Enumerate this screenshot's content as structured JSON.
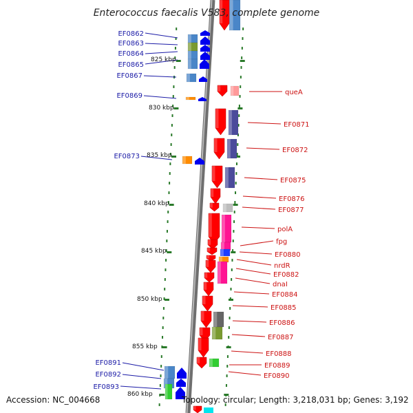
{
  "title": "Enterococcus faecalis V583, complete genome",
  "footer": {
    "accession": "Accession: NC_004668",
    "topology": "Topology: circular; Length: 3,218,031 bp; Genes: 3,192"
  },
  "colors": {
    "backbone": "#888888",
    "tick": "#2a7a2a",
    "left_label": "#1a1aa6",
    "right_label": "#cc1111",
    "forward_gene": "#ff0000",
    "reverse_gene": "#0000ee"
  },
  "ticks": [
    {
      "label": "825 kbp"
    },
    {
      "label": "830 kbp"
    },
    {
      "label": "835 kbp"
    },
    {
      "label": "840 kbp"
    },
    {
      "label": "845 kbp"
    },
    {
      "label": "850 kbp"
    },
    {
      "label": "855 kbp"
    },
    {
      "label": "860 kbp"
    }
  ],
  "left_labels": [
    "EF0862",
    "EF0863",
    "EF0864",
    "EF0865",
    "EF0867",
    "EF0869",
    "EF0873",
    "EF0891",
    "EF0892",
    "EF0893"
  ],
  "right_labels": [
    "queA",
    "EF0871",
    "EF0872",
    "EF0875",
    "EF0876",
    "EF0877",
    "polA",
    "fpg",
    "EF0880",
    "nrdR",
    "EF0882",
    "dnaI",
    "EF0884",
    "EF0885",
    "EF0886",
    "EF0887",
    "EF0888",
    "EF0889",
    "EF0890"
  ]
}
